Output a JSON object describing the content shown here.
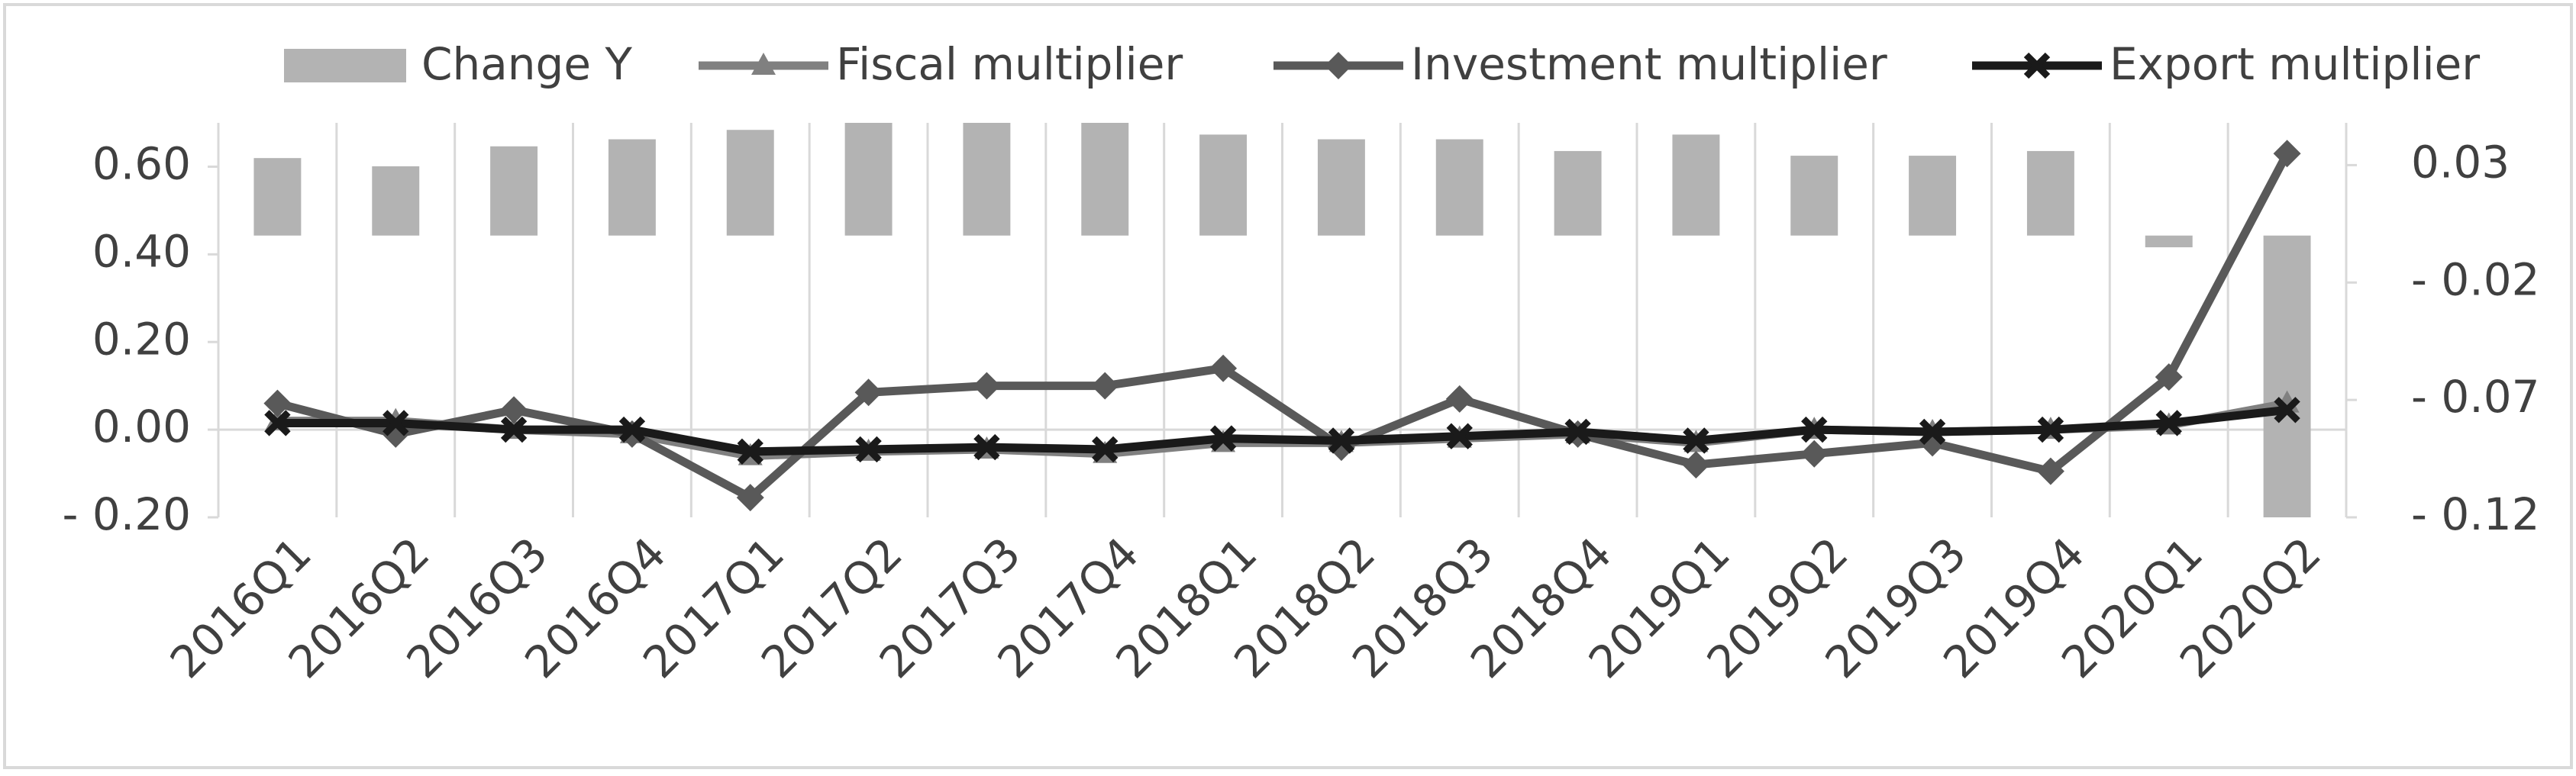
{
  "chart_data": {
    "type": "bar-line",
    "categories": [
      "2016Q1",
      "2016Q2",
      "2016Q3",
      "2016Q4",
      "2017Q1",
      "2017Q2",
      "2017Q3",
      "2017Q4",
      "2018Q1",
      "2018Q2",
      "2018Q3",
      "2018Q4",
      "2019Q1",
      "2019Q2",
      "2019Q3",
      "2019Q4",
      "2020Q1",
      "2020Q2"
    ],
    "series": [
      {
        "name": "Change Y",
        "type": "bar",
        "axis": "y2",
        "color": "#b3b3b3",
        "values": [
          0.033,
          0.0295,
          0.038,
          0.041,
          0.045,
          0.048,
          0.048,
          0.048,
          0.043,
          0.041,
          0.041,
          0.036,
          0.043,
          0.034,
          0.034,
          0.036,
          -0.005,
          -0.12
        ]
      },
      {
        "name": "Fiscal multiplier",
        "type": "line",
        "marker": "triangle",
        "color": "#808080",
        "values": [
          0.02,
          0.02,
          0.0,
          -0.01,
          -0.06,
          -0.05,
          -0.045,
          -0.055,
          -0.03,
          -0.03,
          -0.02,
          -0.01,
          -0.03,
          0.0,
          -0.005,
          0.0,
          0.01,
          0.06
        ]
      },
      {
        "name": "Investment multiplier",
        "type": "line",
        "marker": "diamond",
        "color": "#595959",
        "values": [
          0.06,
          -0.01,
          0.045,
          -0.01,
          -0.155,
          0.085,
          0.1,
          0.1,
          0.14,
          -0.04,
          0.07,
          -0.01,
          -0.08,
          -0.055,
          -0.03,
          -0.095,
          0.12,
          0.63
        ]
      },
      {
        "name": "Export multiplier",
        "type": "line",
        "marker": "x",
        "color": "#1a1a1a",
        "values": [
          0.015,
          0.015,
          0.0,
          0.0,
          -0.05,
          -0.045,
          -0.04,
          -0.045,
          -0.02,
          -0.025,
          -0.015,
          -0.005,
          -0.025,
          0.0,
          -0.005,
          0.0,
          0.015,
          0.045
        ]
      }
    ],
    "ylim": [
      -0.2,
      0.7
    ],
    "yticks": [
      {
        "value": -0.2,
        "label": "- 0.20"
      },
      {
        "value": 0,
        "label": "0.00"
      },
      {
        "value": 0.2,
        "label": "0.20"
      },
      {
        "value": 0.4,
        "label": "0.40"
      },
      {
        "value": 0.6,
        "label": "0.60"
      }
    ],
    "y2lim": [
      -0.12,
      0.048
    ],
    "y2ticks": [
      {
        "value": -0.12,
        "label": "- 0.12"
      },
      {
        "value": -0.07,
        "label": "- 0.07"
      },
      {
        "value": -0.02,
        "label": "- 0.02"
      },
      0.03
    ],
    "grid": true,
    "legend": "top"
  }
}
